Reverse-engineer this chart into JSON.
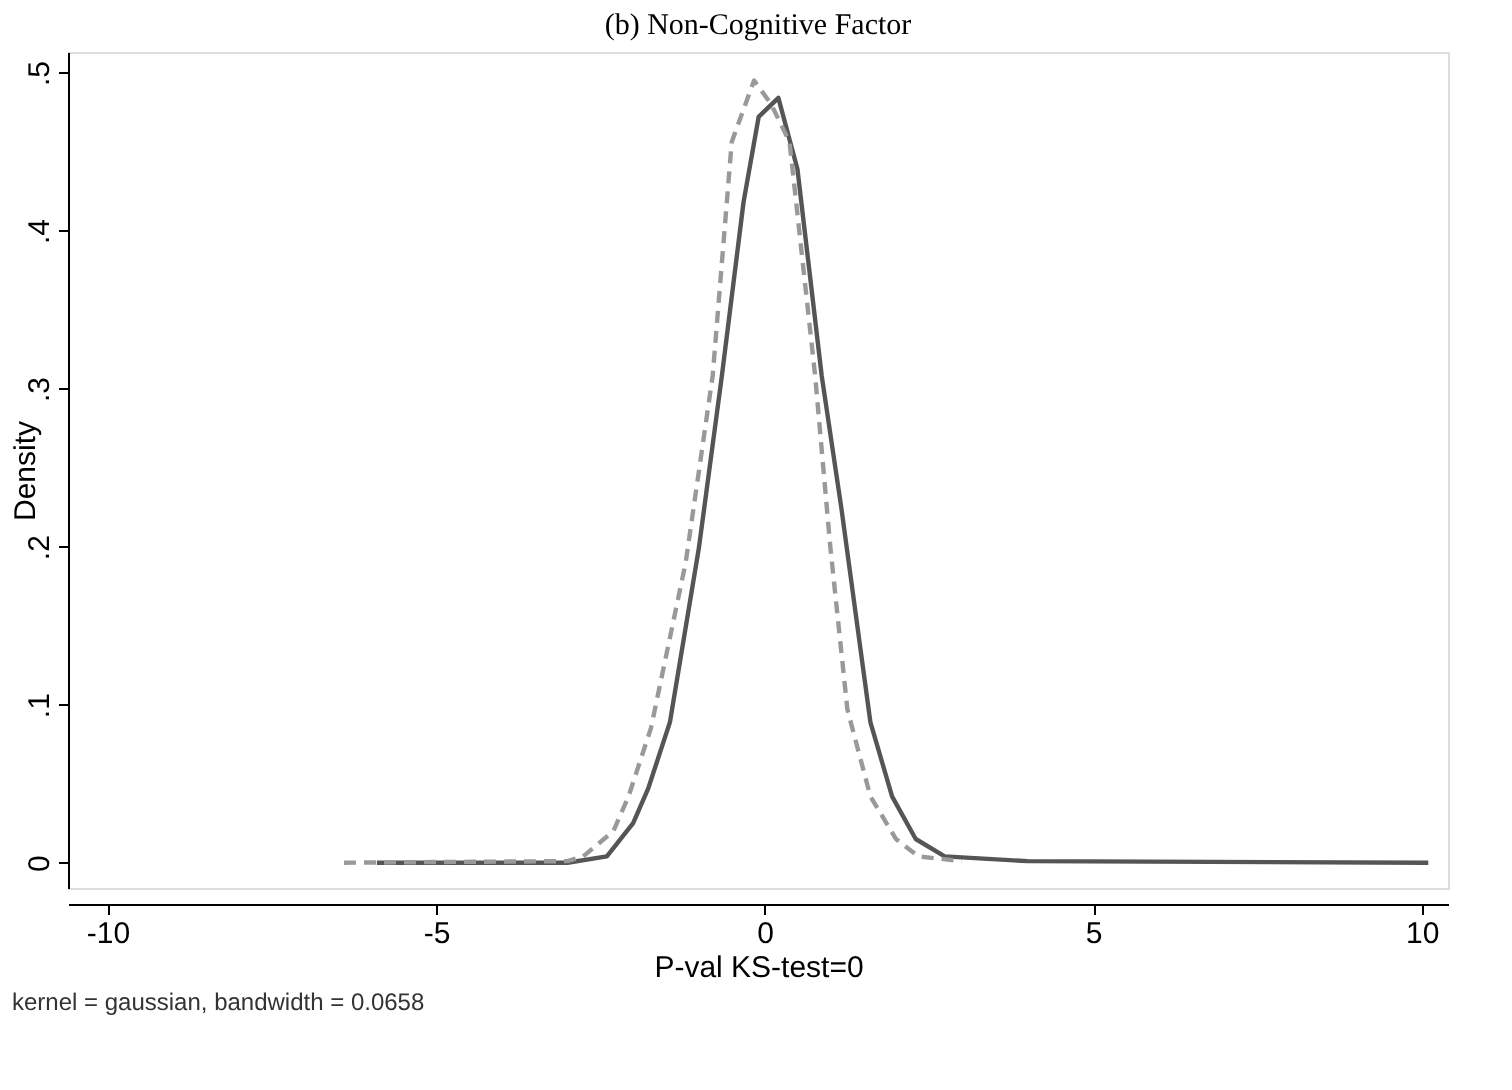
{
  "chart_data": {
    "type": "line",
    "title": "(b) Non-Cognitive Factor",
    "xlabel": "P-val KS-test=0",
    "ylabel": "Density",
    "annotations": [
      "kernel = gaussian, bandwidth = 0.0658"
    ],
    "xlim": [
      -10.6,
      10.4
    ],
    "xticks": [
      -10,
      -5,
      0,
      5,
      10
    ],
    "ylim": [
      -0.016,
      0.513
    ],
    "yticks": [
      {
        "value": 0,
        "label": "0"
      },
      {
        "value": 0.1,
        "label": ".1"
      },
      {
        "value": 0.2,
        "label": ".2"
      },
      {
        "value": 0.3,
        "label": ".3"
      },
      {
        "value": 0.4,
        "label": ".4"
      },
      {
        "value": 0.5,
        "label": ".5"
      }
    ],
    "grid": false,
    "series": [
      {
        "color": "#555555",
        "line_style": "solid",
        "x": [
          -5.9,
          -3,
          -2.4,
          -2,
          -1.77,
          -1.44,
          -1.0,
          -0.65,
          -0.32,
          -0.09,
          0.21,
          0.5,
          0.87,
          1.17,
          1.61,
          1.94,
          2.3,
          2.74,
          4,
          10.1
        ],
        "values": [
          0,
          0,
          0.004,
          0.025,
          0.047,
          0.089,
          0.199,
          0.308,
          0.418,
          0.472,
          0.484,
          0.439,
          0.308,
          0.224,
          0.089,
          0.042,
          0.015,
          0.004,
          0.001,
          0
        ]
      },
      {
        "color": "#999999",
        "line_style": "dashed",
        "x": [
          -6.4,
          -3,
          -2.76,
          -2.3,
          -2.07,
          -1.73,
          -1.2,
          -0.79,
          -0.5,
          -0.16,
          0.1,
          0.38,
          0.77,
          1.0,
          1.26,
          1.61,
          2.0,
          2.34,
          3
        ],
        "values": [
          0,
          0.001,
          0.004,
          0.02,
          0.042,
          0.085,
          0.19,
          0.308,
          0.456,
          0.495,
          0.48,
          0.456,
          0.308,
          0.2,
          0.097,
          0.042,
          0.015,
          0.004,
          0.001
        ]
      }
    ]
  }
}
